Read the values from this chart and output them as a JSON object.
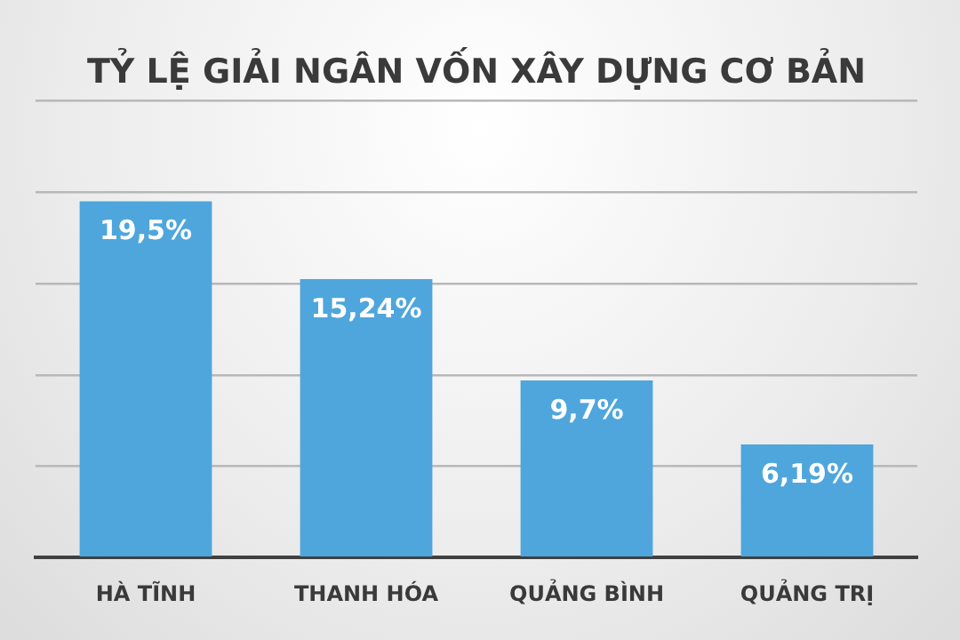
{
  "chart_data": {
    "type": "bar",
    "title": "TỶ LỆ GIẢI NGÂN VỐN XÂY DỰNG CƠ BẢN",
    "categories": [
      "HÀ TĨNH",
      "THANH HÓA",
      "QUẢNG BÌNH",
      "QUẢNG TRỊ"
    ],
    "values": [
      19.5,
      15.24,
      9.7,
      6.19
    ],
    "value_labels": [
      "19,5%",
      "15,24%",
      "9,7%",
      "6,19%"
    ],
    "color": "#4ea6dc",
    "ylim": [
      0,
      25
    ],
    "yticks": [
      {
        "value": 0,
        "label": null
      },
      {
        "value": 5,
        "label": null
      },
      {
        "value": 10,
        "label": null
      },
      {
        "value": 15,
        "label": null
      },
      {
        "value": 20,
        "label": null
      },
      {
        "value": 25,
        "label": null
      }
    ],
    "grid": "y",
    "tick_labels": "x",
    "legend": false
  }
}
